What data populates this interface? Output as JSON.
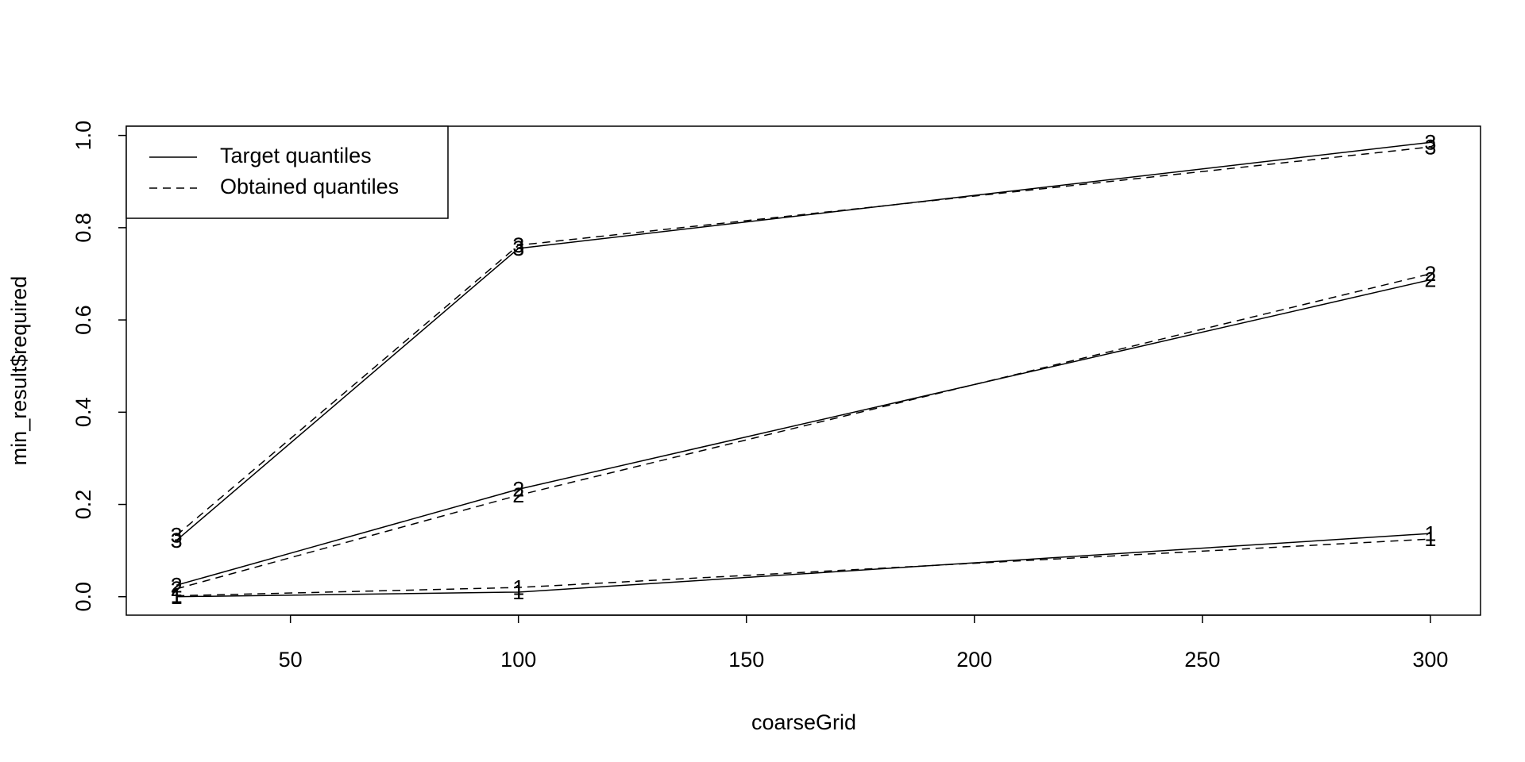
{
  "chart_data": {
    "type": "line",
    "xlabel": "coarseGrid",
    "ylabel": "min_result$required",
    "x": [
      25,
      100,
      300
    ],
    "xlim": [
      14,
      311
    ],
    "xticks": [
      50,
      100,
      150,
      200,
      250,
      300
    ],
    "ylim": [
      -0.04,
      1.02
    ],
    "yticks": [
      {
        "value": 0,
        "label": "0.0"
      },
      0.2,
      0.4,
      0.6,
      0.8,
      {
        "value": 1,
        "label": "1.0"
      }
    ],
    "color": "#000000",
    "legend_position": "top-left",
    "legend": [
      {
        "label": "Target quantiles",
        "dash": "solid"
      },
      {
        "label": "Obtained quantiles",
        "dash": "dashed"
      }
    ],
    "series": [
      {
        "marker": "1",
        "dash": "solid",
        "values": [
          0.0,
          0.01,
          0.137
        ]
      },
      {
        "marker": "2",
        "dash": "solid",
        "values": [
          0.025,
          0.233,
          0.687
        ]
      },
      {
        "marker": "3",
        "dash": "solid",
        "values": [
          0.122,
          0.755,
          0.985
        ]
      },
      {
        "marker": "1",
        "dash": "dashed",
        "values": [
          0.002,
          0.02,
          0.125
        ]
      },
      {
        "marker": "2",
        "dash": "dashed",
        "values": [
          0.017,
          0.22,
          0.7
        ]
      },
      {
        "marker": "3",
        "dash": "dashed",
        "values": [
          0.133,
          0.762,
          0.975
        ]
      }
    ]
  }
}
